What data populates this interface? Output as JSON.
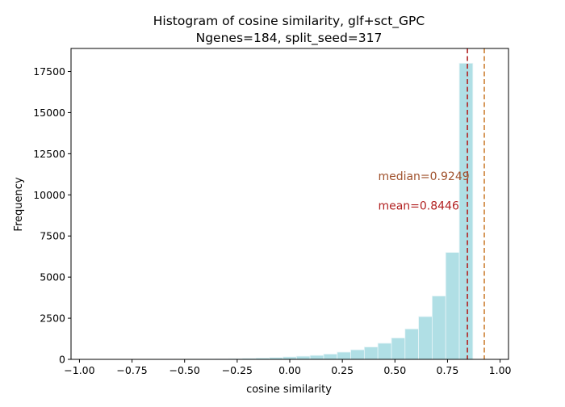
{
  "chart_data": {
    "type": "bar",
    "title_line1": "Histogram of cosine similarity, glf+sct_GPC",
    "title_line2": "Ngenes=184, split_seed=317",
    "xlabel": "cosine similarity",
    "ylabel": "Frequency",
    "xlim": [
      -1.04,
      1.04
    ],
    "ylim": [
      0,
      18900
    ],
    "x_ticks": [
      {
        "value": -1.0,
        "label": "−1.00"
      },
      {
        "value": -0.75,
        "label": "−0.75"
      },
      {
        "value": -0.5,
        "label": "−0.50"
      },
      {
        "value": -0.25,
        "label": "−0.25"
      },
      {
        "value": 0.0,
        "label": "0.00"
      },
      {
        "value": 0.25,
        "label": "0.25"
      },
      {
        "value": 0.5,
        "label": "0.50"
      },
      {
        "value": 0.75,
        "label": "0.75"
      },
      {
        "value": 1.0,
        "label": "1.00"
      }
    ],
    "y_ticks": [
      {
        "value": 0,
        "label": "0"
      },
      {
        "value": 2500,
        "label": "2500"
      },
      {
        "value": 5000,
        "label": "5000"
      },
      {
        "value": 7500,
        "label": "7500"
      },
      {
        "value": 10000,
        "label": "10000"
      },
      {
        "value": 12500,
        "label": "12500"
      },
      {
        "value": 15000,
        "label": "15000"
      },
      {
        "value": 17500,
        "label": "17500"
      }
    ],
    "bins": {
      "start": -1.0,
      "width": 0.0645,
      "counts": [
        2,
        3,
        4,
        5,
        6,
        8,
        10,
        12,
        15,
        20,
        30,
        45,
        60,
        80,
        110,
        150,
        190,
        240,
        320,
        440,
        580,
        750,
        980,
        1300,
        1850,
        2600,
        3850,
        6500,
        18000
      ]
    },
    "bar_color": "#b0dfe5",
    "bar_edge_color": "#e8f5f7",
    "grid": false,
    "legend": "none",
    "reference_lines": [
      {
        "name": "mean",
        "value": 0.8446,
        "color": "#b22222",
        "label": "mean=0.8446",
        "label_x": 0.42,
        "label_y": 9100
      },
      {
        "name": "median",
        "value": 0.9249,
        "color": "#cd7f32",
        "label": "median=0.9249",
        "label_x": 0.42,
        "label_y": 10900
      }
    ],
    "annotation_colors": {
      "mean": "#b22222",
      "median": "#a0522d"
    }
  }
}
